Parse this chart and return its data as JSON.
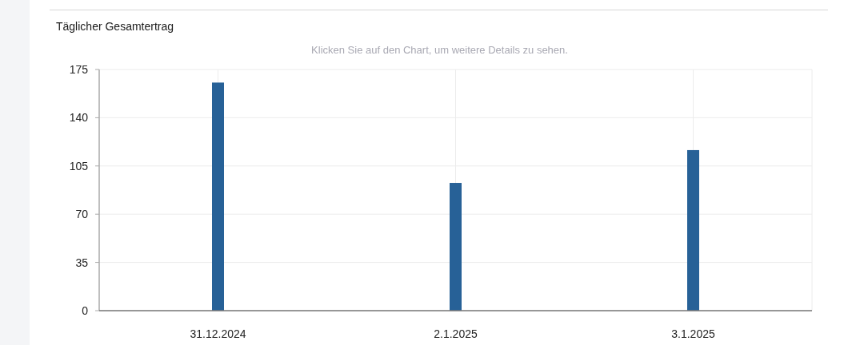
{
  "chart_data": {
    "type": "bar",
    "title": "Täglicher Gesamtertrag",
    "subtitle": "Klicken Sie auf den Chart, um weitere Details zu sehen.",
    "categories": [
      "31.12.2024",
      "2.1.2025",
      "3.1.2025"
    ],
    "values": [
      165.5,
      92.7,
      116.5
    ],
    "color": "#276197",
    "ylim": [
      0,
      175
    ],
    "yticks": [
      0,
      35,
      70,
      105,
      140,
      175
    ],
    "grid": true
  }
}
